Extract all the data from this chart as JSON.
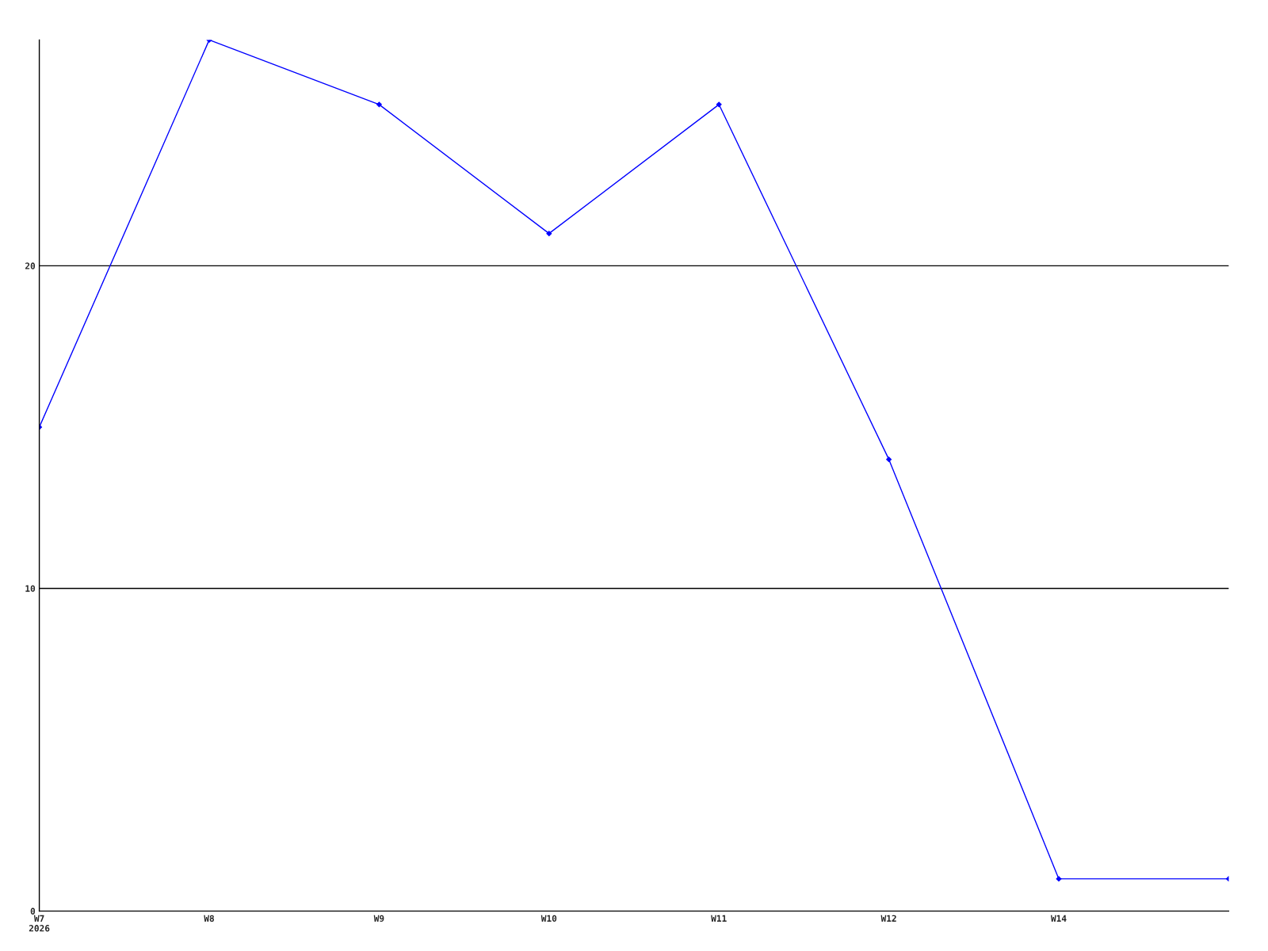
{
  "chart_data": {
    "type": "line",
    "categories": [
      "W7\n2026",
      "W8",
      "W9",
      "W10",
      "W11",
      "W12",
      "W14",
      null
    ],
    "series": [
      {
        "color": "#0000ff",
        "values": [
          15,
          27,
          25,
          21,
          25,
          14,
          1,
          1
        ]
      }
    ],
    "ylim": [
      0,
      27
    ],
    "yticks": [
      0,
      10,
      20
    ],
    "grid": "y",
    "marker": "diamond",
    "line_style": "solid"
  }
}
